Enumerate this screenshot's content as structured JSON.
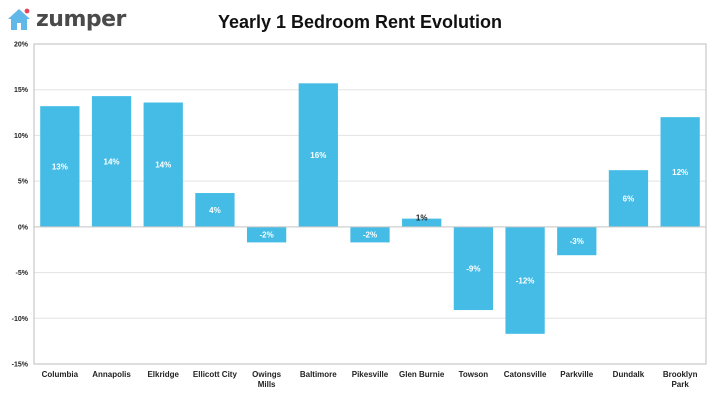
{
  "brand": {
    "name": "zumper",
    "logo_icon": "house-icon",
    "logo_color": "#5fb8e8",
    "dot_color": "#e8435b",
    "text_color": "#4a4a4a"
  },
  "chart_data": {
    "type": "bar",
    "title": "Yearly 1 Bedroom Rent Evolution",
    "categories": [
      [
        "Columbia"
      ],
      [
        "Annapolis"
      ],
      [
        "Elkridge"
      ],
      [
        "Ellicott City"
      ],
      [
        "Owings",
        "Mills"
      ],
      [
        "Baltimore"
      ],
      [
        "Pikesville"
      ],
      [
        "Glen Burnie"
      ],
      [
        "Towson"
      ],
      [
        "Catonsville"
      ],
      [
        "Parkville"
      ],
      [
        "Dundalk"
      ],
      [
        "Brooklyn",
        "Park"
      ]
    ],
    "values": [
      13.2,
      14.3,
      13.6,
      3.7,
      -1.7,
      15.7,
      -1.7,
      0.9,
      -9.1,
      -11.7,
      -3.1,
      6.2,
      12.0
    ],
    "data_labels": [
      "13%",
      "14%",
      "14%",
      "4%",
      "-2%",
      "16%",
      "-2%",
      "1%",
      "-9%",
      "-12%",
      "-3%",
      "6%",
      "12%"
    ],
    "ylim": [
      -15,
      20
    ],
    "yticks": [
      20,
      15,
      10,
      5,
      0,
      -5,
      -10,
      -15
    ],
    "ytick_labels": [
      "20%",
      "15%",
      "10%",
      "5%",
      "0%",
      "-5%",
      "-10%",
      "-15%"
    ],
    "bar_color": "#45bce5",
    "grid": true,
    "legend": "none"
  }
}
